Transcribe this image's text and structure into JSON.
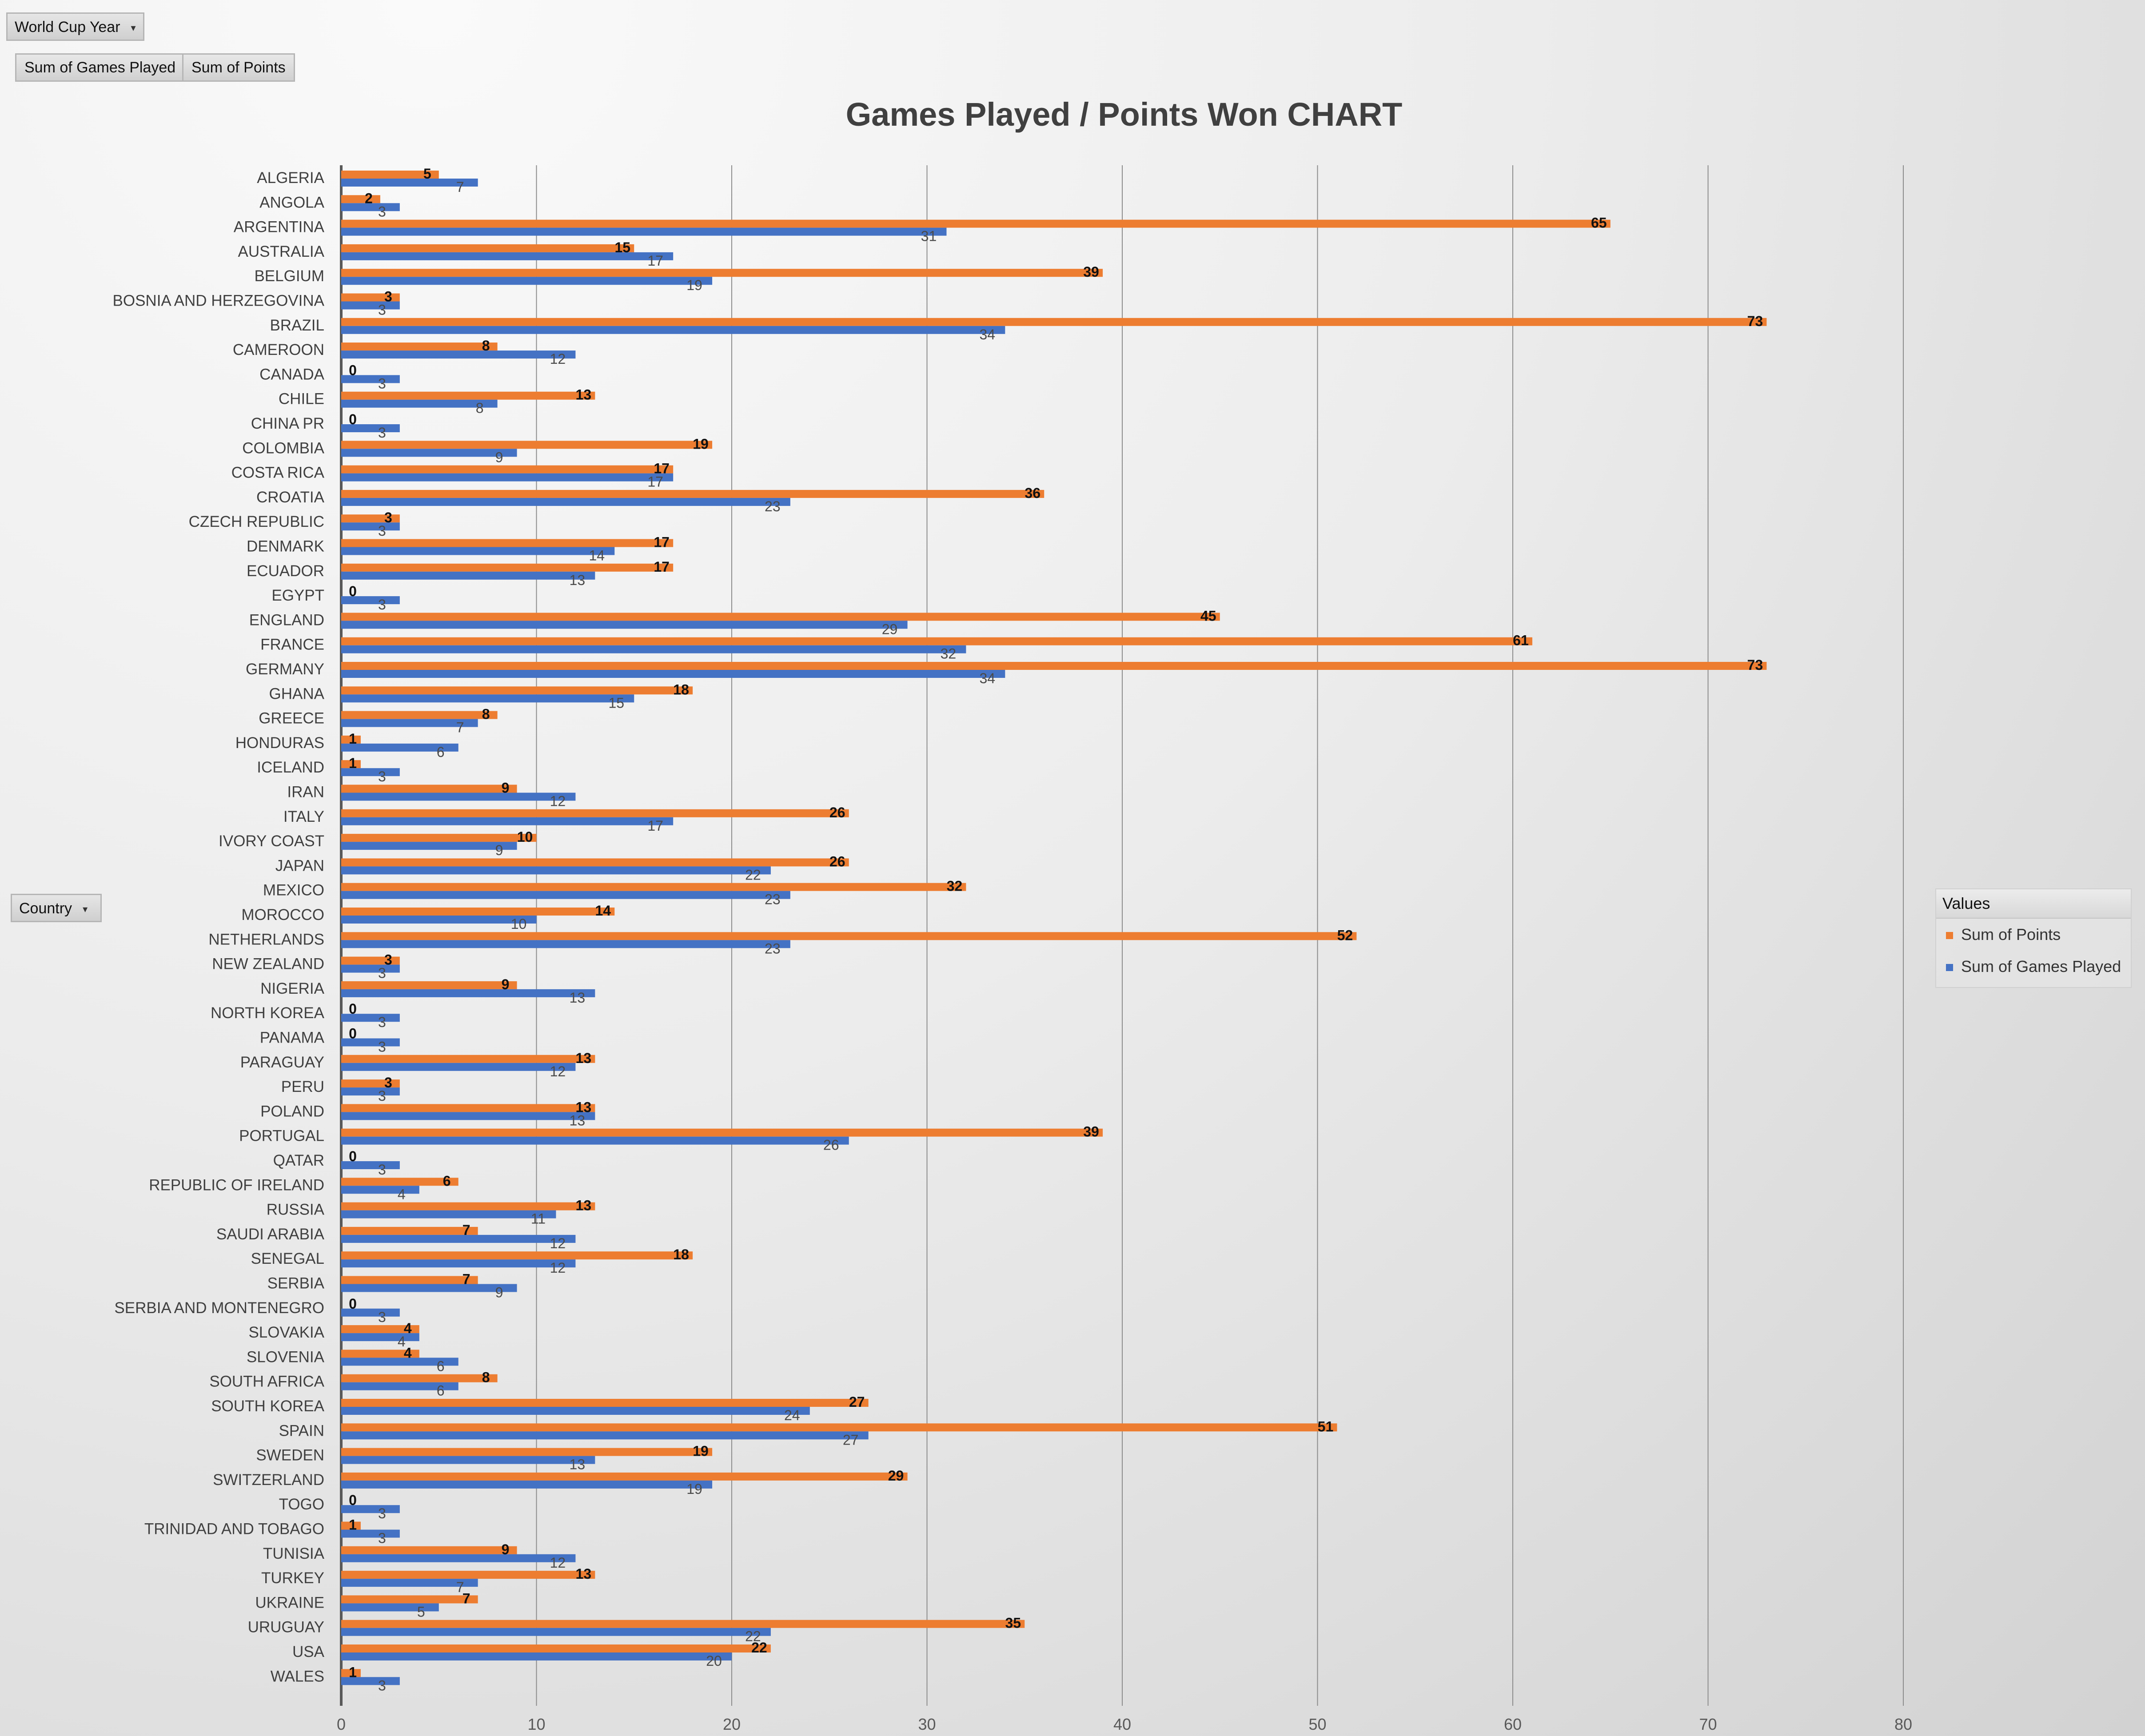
{
  "filters": {
    "year_label": "World Cup Year",
    "year_dd": "▾"
  },
  "value_chips": [
    "Sum of Games Played",
    "Sum of Points"
  ],
  "row_field": {
    "label": "Country",
    "dd": "▾"
  },
  "colors": {
    "points": "#ED7D31",
    "games": "#4472C4",
    "gridline": "#8c8c8c"
  },
  "chart_data": {
    "type": "bar",
    "orientation": "horizontal",
    "title": "Games Played / Points Won CHART",
    "xlabel": "",
    "ylabel": "",
    "xlim": [
      0,
      80
    ],
    "xticks": [
      0,
      10,
      20,
      30,
      40,
      50,
      60,
      70,
      80
    ],
    "grid": true,
    "legend_title": "Values",
    "legend_position": "right",
    "categories": [
      "ALGERIA",
      "ANGOLA",
      "ARGENTINA",
      "AUSTRALIA",
      "BELGIUM",
      "BOSNIA AND HERZEGOVINA",
      "BRAZIL",
      "CAMEROON",
      "CANADA",
      "CHILE",
      "CHINA PR",
      "COLOMBIA",
      "COSTA RICA",
      "CROATIA",
      "CZECH REPUBLIC",
      "DENMARK",
      "ECUADOR",
      "EGYPT",
      "ENGLAND",
      "FRANCE",
      "GERMANY",
      "GHANA",
      "GREECE",
      "HONDURAS",
      "ICELAND",
      "IRAN",
      "ITALY",
      "IVORY COAST",
      "JAPAN",
      "MEXICO",
      "MOROCCO",
      "NETHERLANDS",
      "NEW ZEALAND",
      "NIGERIA",
      "NORTH KOREA",
      "PANAMA",
      "PARAGUAY",
      "PERU",
      "POLAND",
      "PORTUGAL",
      "QATAR",
      "REPUBLIC OF IRELAND",
      "RUSSIA",
      "SAUDI ARABIA",
      "SENEGAL",
      "SERBIA",
      "SERBIA AND MONTENEGRO",
      "SLOVAKIA",
      "SLOVENIA",
      "SOUTH AFRICA",
      "SOUTH KOREA",
      "SPAIN",
      "SWEDEN",
      "SWITZERLAND",
      "TOGO",
      "TRINIDAD AND TOBAGO",
      "TUNISIA",
      "TURKEY",
      "UKRAINE",
      "URUGUAY",
      "USA",
      "WALES"
    ],
    "series": [
      {
        "name": "Sum of Points",
        "values": [
          5,
          2,
          65,
          15,
          39,
          3,
          73,
          8,
          0,
          13,
          0,
          19,
          17,
          36,
          3,
          17,
          17,
          0,
          45,
          61,
          73,
          18,
          8,
          1,
          1,
          9,
          26,
          10,
          26,
          32,
          14,
          52,
          3,
          9,
          0,
          0,
          13,
          3,
          13,
          39,
          0,
          6,
          13,
          7,
          18,
          7,
          0,
          4,
          4,
          8,
          27,
          51,
          19,
          29,
          0,
          1,
          9,
          13,
          7,
          35,
          22,
          1
        ]
      },
      {
        "name": "Sum of Games Played",
        "values": [
          7,
          3,
          31,
          17,
          19,
          3,
          34,
          12,
          3,
          8,
          3,
          9,
          17,
          23,
          3,
          14,
          13,
          3,
          29,
          32,
          34,
          15,
          7,
          6,
          3,
          12,
          17,
          9,
          22,
          23,
          10,
          23,
          3,
          13,
          3,
          3,
          12,
          3,
          13,
          26,
          3,
          4,
          11,
          12,
          12,
          9,
          3,
          4,
          6,
          6,
          24,
          27,
          13,
          19,
          3,
          3,
          12,
          7,
          5,
          22,
          20,
          3
        ]
      }
    ]
  }
}
